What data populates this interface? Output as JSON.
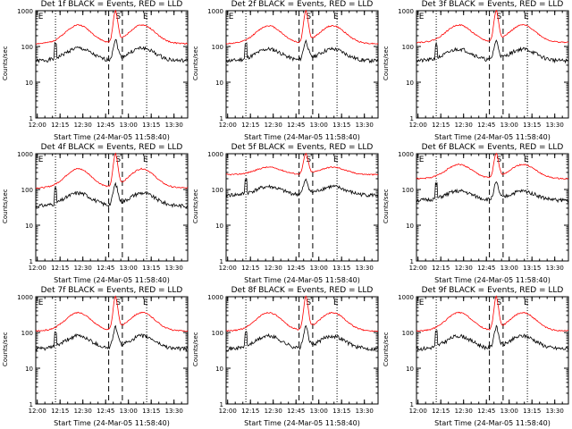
{
  "figure": {
    "xlabel": "Start Time (24-Mar-05 11:58:40)",
    "ylabel": "Counts/sec",
    "colors": {
      "events": "#000000",
      "lld": "#ff0000"
    }
  },
  "chart_data": [
    {
      "type": "line",
      "title": "Det 1f BLACK = Events, RED = LLD",
      "xlabel": "Start Time (24-Mar-05 11:58:40)",
      "ylabel": "Counts/sec",
      "ylim": [
        1,
        1000
      ],
      "yscale": "log",
      "x_ticks": [
        "12:00",
        "12:15",
        "12:30",
        "12:45",
        "13:00",
        "13:15",
        "13:30"
      ],
      "y_ticks": [
        "1",
        "10",
        "100",
        "1000"
      ],
      "x_range_minutes": [
        0,
        100
      ],
      "vlines_dotted_min": [
        13,
        73
      ],
      "vlines_dashed_min": [
        48,
        57
      ],
      "markers": [
        {
          "label": "E",
          "at_min": 1
        },
        {
          "label": "S",
          "at_min": 52
        },
        {
          "label": "E",
          "at_min": 70
        }
      ],
      "series": [
        {
          "name": "Events",
          "color": "#000000",
          "baseline": 40,
          "peak": 90,
          "flare_peak": 150
        },
        {
          "name": "LLD",
          "color": "#ff0000",
          "baseline": 120,
          "peak": 400,
          "flare_peak": 1000
        }
      ]
    },
    {
      "type": "line",
      "title": "Det 2f BLACK = Events, RED = LLD",
      "xlabel": "Start Time (24-Mar-05 11:58:40)",
      "ylabel": "Counts/sec",
      "ylim": [
        1,
        1000
      ],
      "yscale": "log",
      "x_ticks": [
        "12:00",
        "12:15",
        "12:30",
        "12:45",
        "13:00",
        "13:15",
        "13:30"
      ],
      "y_ticks": [
        "1",
        "10",
        "100",
        "1000"
      ],
      "x_range_minutes": [
        0,
        100
      ],
      "vlines_dotted_min": [
        13,
        73
      ],
      "vlines_dashed_min": [
        48,
        57
      ],
      "markers": [
        {
          "label": "E",
          "at_min": 1
        },
        {
          "label": "S",
          "at_min": 52
        },
        {
          "label": "E",
          "at_min": 70
        }
      ],
      "series": [
        {
          "name": "Events",
          "color": "#000000",
          "baseline": 40,
          "peak": 85,
          "flare_peak": 140
        },
        {
          "name": "LLD",
          "color": "#ff0000",
          "baseline": 120,
          "peak": 380,
          "flare_peak": 1000
        }
      ]
    },
    {
      "type": "line",
      "title": "Det 3f BLACK = Events, RED = LLD",
      "xlabel": "Start Time (24-Mar-05 11:58:40)",
      "ylabel": "Counts/sec",
      "ylim": [
        1,
        1000
      ],
      "yscale": "log",
      "x_ticks": [
        "12:00",
        "12:15",
        "12:30",
        "12:45",
        "13:00",
        "13:15",
        "13:30"
      ],
      "y_ticks": [
        "1",
        "10",
        "100",
        "1000"
      ],
      "x_range_minutes": [
        0,
        100
      ],
      "vlines_dotted_min": [
        13,
        73
      ],
      "vlines_dashed_min": [
        48,
        57
      ],
      "markers": [
        {
          "label": "E",
          "at_min": 1
        },
        {
          "label": "S",
          "at_min": 52
        },
        {
          "label": "E",
          "at_min": 70
        }
      ],
      "series": [
        {
          "name": "Events",
          "color": "#000000",
          "baseline": 40,
          "peak": 85,
          "flare_peak": 140
        },
        {
          "name": "LLD",
          "color": "#ff0000",
          "baseline": 130,
          "peak": 400,
          "flare_peak": 1000
        }
      ]
    },
    {
      "type": "line",
      "title": "Det 4f BLACK = Events, RED = LLD",
      "xlabel": "Start Time (24-Mar-05 11:58:40)",
      "ylabel": "Counts/sec",
      "ylim": [
        1,
        1000
      ],
      "yscale": "log",
      "x_ticks": [
        "12:00",
        "12:15",
        "12:30",
        "12:45",
        "13:00",
        "13:15",
        "13:30"
      ],
      "y_ticks": [
        "1",
        "10",
        "100",
        "1000"
      ],
      "x_range_minutes": [
        0,
        100
      ],
      "vlines_dotted_min": [
        13,
        73
      ],
      "vlines_dashed_min": [
        48,
        57
      ],
      "markers": [
        {
          "label": "E",
          "at_min": 1
        },
        {
          "label": "S",
          "at_min": 52
        },
        {
          "label": "E",
          "at_min": 70
        }
      ],
      "series": [
        {
          "name": "Events",
          "color": "#000000",
          "baseline": 35,
          "peak": 80,
          "flare_peak": 140
        },
        {
          "name": "LLD",
          "color": "#ff0000",
          "baseline": 110,
          "peak": 380,
          "flare_peak": 1000
        }
      ]
    },
    {
      "type": "line",
      "title": "Det 5f BLACK = Events, RED = LLD",
      "xlabel": "Start Time (24-Mar-05 11:58:40)",
      "ylabel": "Counts/sec",
      "ylim": [
        1,
        1000
      ],
      "yscale": "log",
      "x_ticks": [
        "12:00",
        "12:15",
        "12:30",
        "12:45",
        "13:00",
        "13:15",
        "13:30"
      ],
      "y_ticks": [
        "1",
        "10",
        "100",
        "1000"
      ],
      "x_range_minutes": [
        0,
        100
      ],
      "vlines_dotted_min": [
        13,
        73
      ],
      "vlines_dashed_min": [
        48,
        57
      ],
      "markers": [
        {
          "label": "S",
          "at_min": 52
        },
        {
          "label": "E",
          "at_min": 70
        }
      ],
      "series": [
        {
          "name": "Events",
          "color": "#000000",
          "baseline": 70,
          "peak": 120,
          "flare_peak": 180
        },
        {
          "name": "LLD",
          "color": "#ff0000",
          "baseline": 260,
          "peak": 420,
          "flare_peak": 1000
        }
      ]
    },
    {
      "type": "line",
      "title": "Det 6f BLACK = Events, RED = LLD",
      "xlabel": "Start Time (24-Mar-05 11:58:40)",
      "ylabel": "Counts/sec",
      "ylim": [
        1,
        1000
      ],
      "yscale": "log",
      "x_ticks": [
        "12:00",
        "12:15",
        "12:30",
        "12:45",
        "13:00",
        "13:15",
        "13:30"
      ],
      "y_ticks": [
        "1",
        "10",
        "100",
        "1000"
      ],
      "x_range_minutes": [
        0,
        100
      ],
      "vlines_dotted_min": [
        13,
        73
      ],
      "vlines_dashed_min": [
        48,
        57
      ],
      "markers": [
        {
          "label": "E",
          "at_min": 1
        },
        {
          "label": "S",
          "at_min": 52
        },
        {
          "label": "E",
          "at_min": 70
        }
      ],
      "series": [
        {
          "name": "Events",
          "color": "#000000",
          "baseline": 50,
          "peak": 90,
          "flare_peak": 150
        },
        {
          "name": "LLD",
          "color": "#ff0000",
          "baseline": 200,
          "peak": 500,
          "flare_peak": 1000
        }
      ]
    },
    {
      "type": "line",
      "title": "Det 7f BLACK = Events, RED = LLD",
      "xlabel": "Start Time (24-Mar-05 11:58:40)",
      "ylabel": "Counts/sec",
      "ylim": [
        1,
        1000
      ],
      "yscale": "log",
      "x_ticks": [
        "12:00",
        "12:15",
        "12:30",
        "12:45",
        "13:00",
        "13:15",
        "13:30"
      ],
      "y_ticks": [
        "1",
        "10",
        "100",
        "1000"
      ],
      "x_range_minutes": [
        0,
        100
      ],
      "vlines_dotted_min": [
        13,
        73
      ],
      "vlines_dashed_min": [
        48,
        57
      ],
      "markers": [
        {
          "label": "E",
          "at_min": 1
        },
        {
          "label": "S",
          "at_min": 52
        },
        {
          "label": "E",
          "at_min": 70
        }
      ],
      "series": [
        {
          "name": "Events",
          "color": "#000000",
          "baseline": 35,
          "peak": 80,
          "flare_peak": 140
        },
        {
          "name": "LLD",
          "color": "#ff0000",
          "baseline": 110,
          "peak": 360,
          "flare_peak": 1000
        }
      ]
    },
    {
      "type": "line",
      "title": "Det 8f BLACK = Events, RED = LLD",
      "xlabel": "Start Time (24-Mar-05 11:58:40)",
      "ylabel": "Counts/sec",
      "ylim": [
        1,
        1000
      ],
      "yscale": "log",
      "x_ticks": [
        "12:00",
        "12:15",
        "12:30",
        "12:45",
        "13:00",
        "13:15",
        "13:30"
      ],
      "y_ticks": [
        "1",
        "10",
        "100",
        "1000"
      ],
      "x_range_minutes": [
        0,
        100
      ],
      "vlines_dotted_min": [
        13,
        73
      ],
      "vlines_dashed_min": [
        48,
        57
      ],
      "markers": [
        {
          "label": "S",
          "at_min": 52
        },
        {
          "label": "E",
          "at_min": 70
        }
      ],
      "series": [
        {
          "name": "Events",
          "color": "#000000",
          "baseline": 35,
          "peak": 80,
          "flare_peak": 140
        },
        {
          "name": "LLD",
          "color": "#ff0000",
          "baseline": 110,
          "peak": 360,
          "flare_peak": 1000
        }
      ]
    },
    {
      "type": "line",
      "title": "Det 9f BLACK = Events, RED = LLD",
      "xlabel": "Start Time (24-Mar-05 11:58:40)",
      "ylabel": "Counts/sec",
      "ylim": [
        1,
        1000
      ],
      "yscale": "log",
      "x_ticks": [
        "12:00",
        "12:15",
        "12:30",
        "12:45",
        "13:00",
        "13:15",
        "13:30"
      ],
      "y_ticks": [
        "1",
        "10",
        "100",
        "1000"
      ],
      "x_range_minutes": [
        0,
        100
      ],
      "vlines_dotted_min": [
        13,
        73
      ],
      "vlines_dashed_min": [
        48,
        57
      ],
      "markers": [
        {
          "label": "E",
          "at_min": 1
        },
        {
          "label": "S",
          "at_min": 52
        },
        {
          "label": "E",
          "at_min": 70
        }
      ],
      "series": [
        {
          "name": "Events",
          "color": "#000000",
          "baseline": 35,
          "peak": 80,
          "flare_peak": 140
        },
        {
          "name": "LLD",
          "color": "#ff0000",
          "baseline": 110,
          "peak": 360,
          "flare_peak": 1000
        }
      ]
    }
  ]
}
